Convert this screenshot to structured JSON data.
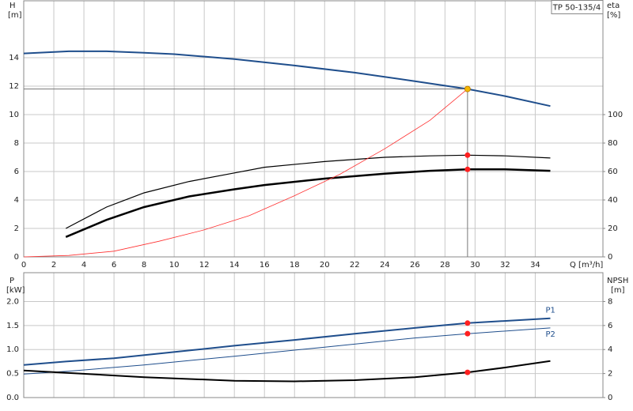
{
  "chart_data": [
    {
      "type": "line",
      "title": "TP 50-135/4",
      "xlabel": "Q [m³/h]",
      "ylabel": "H",
      "yunit": "[m]",
      "y2label": "eta",
      "y2unit": "[%]",
      "xlim": [
        0,
        38.5
      ],
      "xticks": [
        0,
        2,
        4,
        6,
        8,
        10,
        12,
        14,
        16,
        18,
        20,
        22,
        24,
        26,
        28,
        30,
        32,
        34
      ],
      "ylim": [
        0,
        18
      ],
      "yticks": [
        0,
        2,
        4,
        6,
        8,
        10,
        12,
        14
      ],
      "y2lim": [
        0,
        180
      ],
      "y2ticks": [
        0,
        20,
        40,
        60,
        80,
        100
      ],
      "grid": true,
      "series": [
        {
          "color": "#1f4e8c",
          "width": 2,
          "axis": "y",
          "x": [
            0,
            3,
            5.5,
            8,
            10,
            14,
            18,
            22,
            26,
            29.5,
            32,
            35
          ],
          "values": [
            14.3,
            14.45,
            14.45,
            14.35,
            14.25,
            13.9,
            13.45,
            12.95,
            12.35,
            11.8,
            11.3,
            10.6
          ]
        },
        {
          "color": "#000000",
          "width": 1.2,
          "axis": "y2",
          "x": [
            2.8,
            5.5,
            8,
            11,
            14,
            16,
            20,
            24,
            27,
            29.5,
            32,
            35
          ],
          "values": [
            20,
            35,
            45,
            53,
            59,
            63,
            67,
            70,
            71,
            71.5,
            71,
            69.5
          ]
        },
        {
          "color": "#000000",
          "width": 2.5,
          "axis": "y2",
          "x": [
            2.8,
            5.5,
            8,
            11,
            14,
            16,
            20,
            24,
            27,
            29.5,
            32,
            35
          ],
          "values": [
            14,
            26,
            35,
            42.5,
            47.5,
            50.5,
            55,
            58.5,
            60.5,
            61.5,
            61.5,
            60.5
          ]
        },
        {
          "color": "#ff3030",
          "width": 0.8,
          "axis": "y",
          "x": [
            0,
            3,
            6,
            9,
            12,
            15,
            18,
            21,
            24,
            27,
            29.5
          ],
          "values": [
            0,
            0.1,
            0.4,
            1.1,
            1.9,
            2.9,
            4.3,
            5.8,
            7.6,
            9.6,
            11.8
          ]
        }
      ],
      "points": [
        {
          "x": 29.5,
          "y": 11.8,
          "axis": "y",
          "color": "#f5b800",
          "guide": true
        },
        {
          "x": 29.5,
          "y": 71.5,
          "axis": "y2",
          "color": "#ff2020"
        },
        {
          "x": 29.5,
          "y": 61.5,
          "axis": "y2",
          "color": "#ff2020"
        }
      ]
    },
    {
      "type": "line",
      "ylabel": "P",
      "yunit": "[kW]",
      "y2label": "NPSH",
      "y2unit": "[m]",
      "xlim": [
        0,
        38.5
      ],
      "xticks": [
        0,
        2,
        4,
        6,
        8,
        10,
        12,
        14,
        16,
        18,
        20,
        22,
        24,
        26,
        28,
        30,
        32,
        34
      ],
      "xtick_labels": false,
      "ylim": [
        0,
        2.6
      ],
      "yticks": [
        {
          "value": 0,
          "label": "0.0"
        },
        0.5,
        {
          "value": 1,
          "label": "1.0"
        },
        1.5,
        {
          "value": 2,
          "label": "2.0"
        }
      ],
      "y2lim": [
        0,
        10.4
      ],
      "y2ticks": [
        0,
        2,
        4,
        6,
        8
      ],
      "grid": true,
      "series": [
        {
          "name": "P1",
          "color": "#1f4e8c",
          "width": 2,
          "axis": "y",
          "x": [
            0,
            2.8,
            6,
            11,
            14,
            18,
            22,
            26,
            29.5,
            35
          ],
          "values": [
            0.68,
            0.75,
            0.82,
            0.98,
            1.08,
            1.2,
            1.33,
            1.45,
            1.55,
            1.65
          ]
        },
        {
          "name": "P2",
          "color": "#1f4e8c",
          "width": 1,
          "axis": "y",
          "x": [
            0,
            3,
            8,
            14,
            20,
            26,
            29.5,
            35
          ],
          "values": [
            0.49,
            0.55,
            0.68,
            0.86,
            1.05,
            1.24,
            1.33,
            1.45
          ]
        },
        {
          "color": "#000000",
          "width": 2,
          "axis": "y2",
          "x": [
            0,
            3,
            8,
            14,
            18,
            22,
            26,
            29.5,
            32,
            35
          ],
          "values": [
            2.25,
            2.05,
            1.7,
            1.4,
            1.35,
            1.45,
            1.7,
            2.1,
            2.5,
            3.05
          ]
        }
      ],
      "points": [
        {
          "x": 29.5,
          "y": 1.55,
          "axis": "y",
          "color": "#ff2020"
        },
        {
          "x": 29.5,
          "y": 1.33,
          "axis": "y",
          "color": "#ff2020"
        },
        {
          "x": 29.5,
          "y": 2.1,
          "axis": "y2",
          "color": "#ff2020"
        }
      ]
    }
  ]
}
